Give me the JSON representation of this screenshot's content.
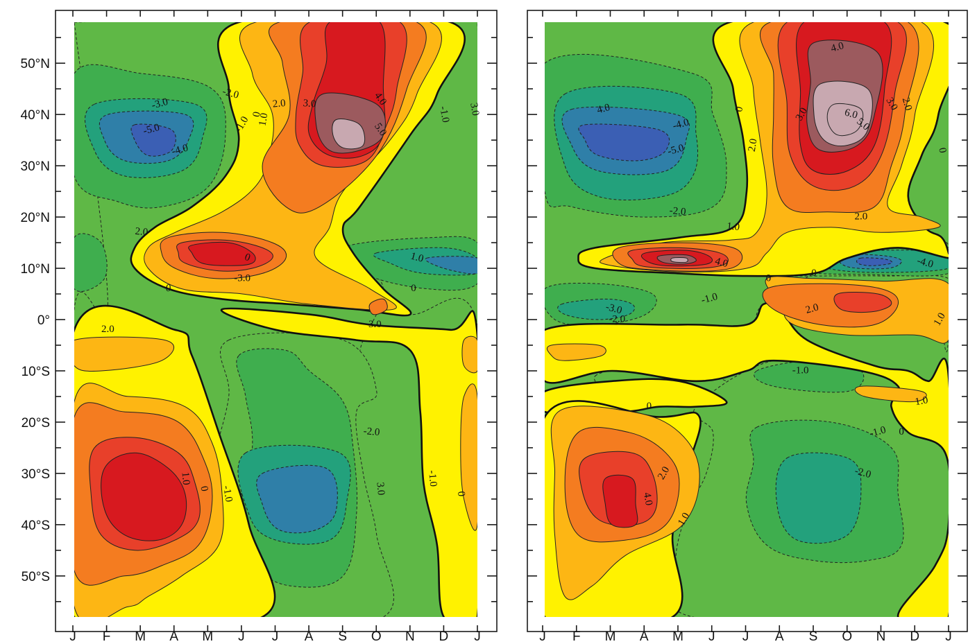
{
  "chart_data": [
    {
      "type": "heatmap",
      "panel": "left",
      "x": [
        "J",
        "F",
        "M",
        "A",
        "M",
        "J",
        "J",
        "A",
        "S",
        "O",
        "N",
        "D",
        "J"
      ],
      "y_ticks": [
        "50°N",
        "40°N",
        "30°N",
        "20°N",
        "10°N",
        "0°",
        "10°S",
        "20°S",
        "30°S",
        "40°S",
        "50°S"
      ],
      "xlim": [
        "J",
        "J"
      ],
      "ylim": [
        "58°S",
        "58°N"
      ],
      "grid": false,
      "legend": "none",
      "contour_levels": [
        -5.0,
        -4.0,
        -3.0,
        -2.0,
        -1.0,
        0,
        1.0,
        2.0,
        3.0,
        4.0,
        5.0
      ],
      "contour_labels": [
        "-3.0",
        "-5.0",
        "-4.0",
        "-2.0",
        "-1.0",
        "0",
        "1.0",
        "2.0",
        "3.0",
        "4.0",
        "5.0",
        "-1.0",
        "3.0",
        "2.0",
        "0",
        "-3.0",
        "0",
        "1.0",
        "0",
        "3.0",
        "2.0",
        "1.0",
        "0",
        "-1.0",
        "-2.0",
        "3.0",
        "-1.0",
        "0"
      ],
      "features": [
        {
          "month": "M",
          "lat": 36,
          "peak": -5.0
        },
        {
          "month": "S",
          "lat": 35,
          "peak": 6.0
        },
        {
          "month": "M",
          "lat": 12,
          "peak": 4.0
        },
        {
          "month": "N",
          "lat": 12,
          "peak": -3.5
        },
        {
          "month": "M",
          "lat": -34,
          "peak": 4.0
        },
        {
          "month": "S",
          "lat": -33,
          "peak": -3.5
        }
      ]
    },
    {
      "type": "heatmap",
      "panel": "right",
      "x": [
        "J",
        "F",
        "M",
        "A",
        "M",
        "J",
        "J",
        "A",
        "S",
        "O",
        "N",
        "D",
        "J"
      ],
      "xlim": [
        "J",
        "J"
      ],
      "ylim": [
        "58°S",
        "58°N"
      ],
      "grid": false,
      "legend": "none",
      "contour_levels": [
        -5.0,
        -4.0,
        -3.0,
        -2.0,
        -1.0,
        0,
        1.0,
        2.0,
        3.0,
        4.0,
        5.0,
        6.0
      ],
      "contour_labels": [
        "4.0",
        "-4.0",
        "-5.0",
        "-2.0",
        "0",
        "2.0",
        "3.0",
        "4.0",
        "6.0",
        "5.0",
        "3.0",
        "2.0",
        "0",
        "2.0",
        "1.0",
        "4.0",
        "0",
        "-4.0",
        "-1.0",
        "0",
        "-3.0",
        "-2.0",
        "2.0",
        "1.0",
        "-1.0",
        "1.0",
        "0",
        "-1.0",
        "0",
        "2.0",
        "4.0",
        "1.0",
        "-2.0"
      ],
      "features": [
        {
          "month": "M",
          "lat": 35,
          "peak": -5.5
        },
        {
          "month": "S",
          "lat": 38,
          "peak": 7.0
        },
        {
          "month": "M",
          "lat": 11,
          "peak": 5.5
        },
        {
          "month": "N",
          "lat": 11,
          "peak": -4.5
        },
        {
          "month": "O",
          "lat": 3,
          "peak": 3.5
        },
        {
          "month": "A",
          "lat": -34,
          "peak": 4.0
        },
        {
          "month": "S",
          "lat": -35,
          "peak": -2.8
        }
      ]
    }
  ],
  "colors": {
    "-6": "#7a4fa6",
    "-5": "#3b5fb4",
    "-4": "#2f7fa8",
    "-3": "#23a17c",
    "-2": "#3fae4e",
    "-1": "#5fb846",
    "0": "#fff200",
    "1": "#fdb614",
    "2": "#f47c20",
    "3": "#e8402a",
    "4": "#d7191f",
    "5": "#9c5a5e",
    "6": "#c8a8b0",
    "axis": "#1a1a1a"
  }
}
